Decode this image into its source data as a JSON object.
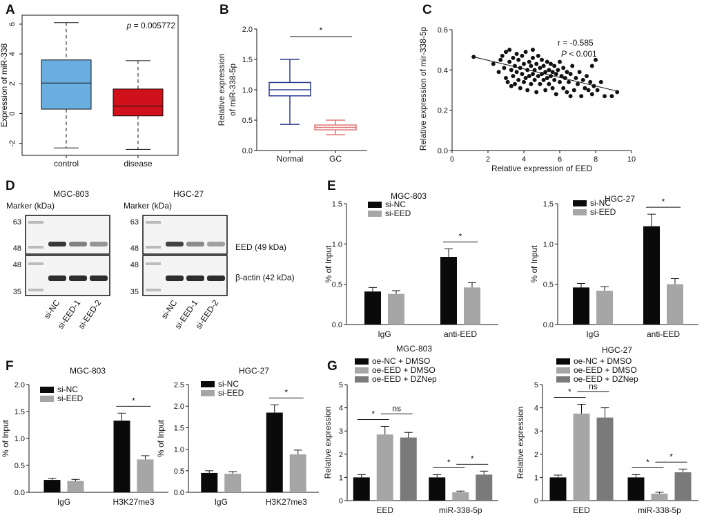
{
  "figure": {
    "panel_labels": [
      "A",
      "B",
      "C",
      "D",
      "E",
      "F",
      "G"
    ],
    "colors": {
      "black": "#0a0a0a",
      "gray": "#a6a6a6",
      "dark_gray": "#7a7a7a",
      "box_blue": "#6aaee0",
      "box_red": "#d0111c",
      "box_line_blue": "#2b3a8f",
      "box_line_red": "#e07373"
    }
  },
  "chart_data": [
    {
      "panel": "A",
      "type": "box",
      "categories": [
        "control",
        "disease"
      ],
      "series": [
        {
          "name": "control",
          "whisker_low": -2.3,
          "q1": 0.3,
          "median": 2.05,
          "q3": 3.6,
          "whisker_high": 6.1
        },
        {
          "name": "disease",
          "whisker_low": -2.4,
          "q1": -0.15,
          "median": 0.5,
          "q3": 1.65,
          "whisker_high": 3.55
        }
      ],
      "ylabel": "Expression of miR-338",
      "ylim": [
        -2.8,
        6.6
      ],
      "yticks": [
        -2,
        0,
        2,
        4,
        6
      ],
      "annotation_prefix": "p",
      "annotation_value": " = 0.005772"
    },
    {
      "panel": "B",
      "type": "box",
      "categories": [
        "Normal",
        "GC"
      ],
      "series": [
        {
          "name": "Normal",
          "whisker_low": 0.43,
          "q1": 0.9,
          "median": 1.0,
          "q3": 1.12,
          "whisker_high": 1.5
        },
        {
          "name": "GC",
          "whisker_low": 0.26,
          "q1": 0.34,
          "median": 0.38,
          "q3": 0.42,
          "whisker_high": 0.5
        }
      ],
      "ylabel_lines": [
        "Relative expression",
        "of miR-338-5p"
      ],
      "ylim": [
        0,
        2.0
      ],
      "yticks": [
        "0.0",
        "0.5",
        "1.0",
        "1.5",
        "2.0"
      ],
      "significance": "*"
    },
    {
      "panel": "C",
      "type": "scatter",
      "xlabel": "Relative expression of EED",
      "ylabel": "Relative expression of mir-338-5p",
      "xlim": [
        0,
        10
      ],
      "ylim": [
        0,
        0.6
      ],
      "xticks": [
        0,
        2,
        4,
        6,
        8,
        10
      ],
      "yticks": [
        "0.0",
        "0.2",
        "0.4",
        "0.6"
      ],
      "stat_r": "r = -0.585",
      "stat_p_prefix": "P",
      "stat_p_value": " < 0.001",
      "fit_line": [
        [
          1.2,
          0.465
        ],
        [
          9.2,
          0.295
        ]
      ],
      "points": [
        [
          1.2,
          0.465
        ],
        [
          2.3,
          0.43
        ],
        [
          2.6,
          0.39
        ],
        [
          2.7,
          0.45
        ],
        [
          2.8,
          0.47
        ],
        [
          2.9,
          0.41
        ],
        [
          3.0,
          0.36
        ],
        [
          3.0,
          0.49
        ],
        [
          3.1,
          0.34
        ],
        [
          3.2,
          0.44
        ],
        [
          3.2,
          0.5
        ],
        [
          3.3,
          0.32
        ],
        [
          3.3,
          0.4
        ],
        [
          3.4,
          0.37
        ],
        [
          3.4,
          0.46
        ],
        [
          3.5,
          0.42
        ],
        [
          3.5,
          0.33
        ],
        [
          3.6,
          0.48
        ],
        [
          3.6,
          0.39
        ],
        [
          3.7,
          0.35
        ],
        [
          3.7,
          0.45
        ],
        [
          3.8,
          0.41
        ],
        [
          3.8,
          0.31
        ],
        [
          3.9,
          0.47
        ],
        [
          3.9,
          0.38
        ],
        [
          4.0,
          0.34
        ],
        [
          4.0,
          0.43
        ],
        [
          4.1,
          0.49
        ],
        [
          4.1,
          0.36
        ],
        [
          4.2,
          0.4
        ],
        [
          4.2,
          0.3
        ],
        [
          4.3,
          0.44
        ],
        [
          4.3,
          0.37
        ],
        [
          4.4,
          0.33
        ],
        [
          4.4,
          0.42
        ],
        [
          4.5,
          0.38
        ],
        [
          4.5,
          0.46
        ],
        [
          4.6,
          0.35
        ],
        [
          4.6,
          0.4
        ],
        [
          4.7,
          0.29
        ],
        [
          4.7,
          0.43
        ],
        [
          4.8,
          0.37
        ],
        [
          4.8,
          0.47
        ],
        [
          4.9,
          0.33
        ],
        [
          4.9,
          0.41
        ],
        [
          5.0,
          0.38
        ],
        [
          5.0,
          0.45
        ],
        [
          5.1,
          0.35
        ],
        [
          5.1,
          0.42
        ],
        [
          5.2,
          0.3
        ],
        [
          5.2,
          0.39
        ],
        [
          5.3,
          0.44
        ],
        [
          5.3,
          0.36
        ],
        [
          5.4,
          0.4
        ],
        [
          5.4,
          0.33
        ],
        [
          5.5,
          0.37
        ],
        [
          5.5,
          0.43
        ],
        [
          5.6,
          0.31
        ],
        [
          5.6,
          0.39
        ],
        [
          5.7,
          0.35
        ],
        [
          5.7,
          0.42
        ],
        [
          5.8,
          0.38
        ],
        [
          5.8,
          0.28
        ],
        [
          5.9,
          0.4
        ],
        [
          6.0,
          0.34
        ],
        [
          6.0,
          0.44
        ],
        [
          6.1,
          0.37
        ],
        [
          6.2,
          0.31
        ],
        [
          6.2,
          0.41
        ],
        [
          6.3,
          0.36
        ],
        [
          6.4,
          0.39
        ],
        [
          6.4,
          0.29
        ],
        [
          6.5,
          0.34
        ],
        [
          6.6,
          0.38
        ],
        [
          6.7,
          0.42
        ],
        [
          6.8,
          0.3
        ],
        [
          6.9,
          0.36
        ],
        [
          7.0,
          0.33
        ],
        [
          7.1,
          0.39
        ],
        [
          7.2,
          0.27
        ],
        [
          7.3,
          0.35
        ],
        [
          7.4,
          0.31
        ],
        [
          7.5,
          0.37
        ],
        [
          7.6,
          0.3
        ],
        [
          7.7,
          0.34
        ],
        [
          7.8,
          0.42
        ],
        [
          7.8,
          0.28
        ],
        [
          7.9,
          0.32
        ],
        [
          8.0,
          0.45
        ],
        [
          8.1,
          0.3
        ],
        [
          8.3,
          0.34
        ],
        [
          8.5,
          0.27
        ],
        [
          8.9,
          0.27
        ],
        [
          9.2,
          0.29
        ],
        [
          6.6,
          0.27
        ],
        [
          4.5,
          0.5
        ]
      ]
    },
    {
      "panel": "D",
      "type": "western-blot",
      "groups": [
        {
          "title": "MGC-803",
          "lanes": [
            "si-NC",
            "si-EED-1",
            "si-EED-2"
          ],
          "eed_intensity": [
            0.9,
            0.55,
            0.45
          ],
          "actin_intensity": [
            0.95,
            0.95,
            0.95
          ]
        },
        {
          "title": "HGC-27",
          "lanes": [
            "si-NC",
            "si-EED-1",
            "si-EED-2"
          ],
          "eed_intensity": [
            0.85,
            0.5,
            0.4
          ],
          "actin_intensity": [
            0.95,
            0.95,
            0.95
          ]
        }
      ],
      "marker_label": "Marker (kDa)",
      "marker_top": [
        "63",
        "48"
      ],
      "marker_bottom": [
        "48",
        "35"
      ],
      "band_labels": [
        "EED (49 kDa)",
        "β-actin (42 kDa)"
      ]
    },
    {
      "panel": "E",
      "type": "bar",
      "title": "MGC-803",
      "categories": [
        "IgG",
        "anti-EED"
      ],
      "series": [
        {
          "name": "si-NC",
          "values": [
            0.41,
            0.84
          ],
          "errors": [
            0.05,
            0.1
          ]
        },
        {
          "name": "si-EED",
          "values": [
            0.38,
            0.46
          ],
          "errors": [
            0.04,
            0.06
          ]
        }
      ],
      "ylabel": "% of Input",
      "ylim": [
        0,
        1.5
      ],
      "yticks": [
        "0.0",
        "0.5",
        "1.0",
        "1.5"
      ],
      "significance": [
        {
          "category": 1,
          "label": "*"
        }
      ]
    },
    {
      "panel": "E",
      "type": "bar",
      "title": "HGC-27",
      "categories": [
        "IgG",
        "anti-EED"
      ],
      "series": [
        {
          "name": "si-NC",
          "values": [
            0.46,
            1.22
          ],
          "errors": [
            0.05,
            0.15
          ]
        },
        {
          "name": "si-EED",
          "values": [
            0.42,
            0.5
          ],
          "errors": [
            0.05,
            0.07
          ]
        }
      ],
      "ylabel": "% of Input",
      "ylim": [
        0,
        1.5
      ],
      "yticks": [
        "0.0",
        "0.5",
        "1.0",
        "1.5"
      ],
      "significance": [
        {
          "category": 1,
          "label": "*"
        }
      ]
    },
    {
      "panel": "F",
      "type": "bar",
      "title": "MGC-803",
      "categories": [
        "IgG",
        "H3K27me3"
      ],
      "series": [
        {
          "name": "si-NC",
          "values": [
            0.23,
            1.33
          ],
          "errors": [
            0.03,
            0.14
          ]
        },
        {
          "name": "si-EED",
          "values": [
            0.21,
            0.61
          ],
          "errors": [
            0.03,
            0.07
          ]
        }
      ],
      "ylabel": "% of Input",
      "ylim": [
        0,
        2.0
      ],
      "yticks": [
        "0.0",
        "0.5",
        "1.0",
        "1.5",
        "2.0"
      ],
      "significance": [
        {
          "category": 1,
          "label": "*"
        }
      ]
    },
    {
      "panel": "F",
      "type": "bar",
      "title": "HGC-27",
      "categories": [
        "IgG",
        "H3K27me3"
      ],
      "series": [
        {
          "name": "si-NC",
          "values": [
            0.45,
            1.85
          ],
          "errors": [
            0.05,
            0.18
          ]
        },
        {
          "name": "si-EED",
          "values": [
            0.43,
            0.88
          ],
          "errors": [
            0.05,
            0.1
          ]
        }
      ],
      "ylabel": "% of Input",
      "ylim": [
        0,
        2.5
      ],
      "yticks": [
        "0.0",
        "0.5",
        "1.0",
        "1.5",
        "2.0",
        "2.5"
      ],
      "significance": [
        {
          "category": 1,
          "label": "*"
        }
      ]
    },
    {
      "panel": "G",
      "type": "bar",
      "title": "MGC-803",
      "categories": [
        "EED",
        "miR-338-5p"
      ],
      "series": [
        {
          "name": "oe-NC + DMSO",
          "values": [
            1.0,
            1.0
          ],
          "errors": [
            0.12,
            0.12
          ]
        },
        {
          "name": "oe-EED + DMSO",
          "values": [
            2.85,
            0.36
          ],
          "errors": [
            0.35,
            0.05
          ]
        },
        {
          "name": "oe-EED + DZNep",
          "values": [
            2.72,
            1.12
          ],
          "errors": [
            0.22,
            0.15
          ]
        }
      ],
      "ylabel": "Relative expression",
      "ylim": [
        0,
        5
      ],
      "yticks": [
        "0",
        "1",
        "2",
        "3",
        "4",
        "5"
      ],
      "significance": [
        {
          "category": 0,
          "from": 0,
          "to": 1,
          "label": "*"
        },
        {
          "category": 0,
          "from": 1,
          "to": 2,
          "label": "ns"
        },
        {
          "category": 1,
          "from": 0,
          "to": 1,
          "label": "*"
        },
        {
          "category": 1,
          "from": 1,
          "to": 2,
          "label": "*"
        }
      ]
    },
    {
      "panel": "G",
      "type": "bar",
      "title": "HGC-27",
      "categories": [
        "EED",
        "miR-338-5p"
      ],
      "series": [
        {
          "name": "oe-NC + DMSO",
          "values": [
            1.0,
            1.0
          ],
          "errors": [
            0.1,
            0.12
          ]
        },
        {
          "name": "oe-EED + DMSO",
          "values": [
            3.75,
            0.3
          ],
          "errors": [
            0.4,
            0.06
          ]
        },
        {
          "name": "oe-EED + DZNep",
          "values": [
            3.58,
            1.22
          ],
          "errors": [
            0.42,
            0.14
          ]
        }
      ],
      "ylabel": "Relative expression",
      "ylim": [
        0,
        5
      ],
      "yticks": [
        "0",
        "1",
        "2",
        "3",
        "4",
        "5"
      ],
      "significance": [
        {
          "category": 0,
          "from": 0,
          "to": 1,
          "label": "*"
        },
        {
          "category": 0,
          "from": 1,
          "to": 2,
          "label": "ns"
        },
        {
          "category": 1,
          "from": 0,
          "to": 1,
          "label": "*"
        },
        {
          "category": 1,
          "from": 1,
          "to": 2,
          "label": "*"
        }
      ]
    }
  ]
}
